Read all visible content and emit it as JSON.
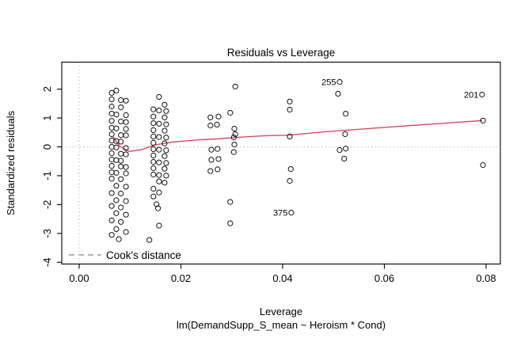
{
  "title": "Residuals vs Leverage",
  "axes": {
    "xlabel": "Leverage",
    "model_label": "lm(DemandSupp_S_mean ~ Heroism * Cond)",
    "ylabel": "Standardized residuals",
    "x_tick_values": [
      0.0,
      0.02,
      0.04,
      0.06,
      0.08
    ],
    "x_tick_labels": [
      "0.00",
      "0.02",
      "0.04",
      "0.06",
      "0.08"
    ],
    "y_tick_values": [
      -4,
      -3,
      -2,
      -1,
      0,
      1,
      2
    ],
    "y_tick_labels": [
      "-4",
      "-3",
      "-2",
      "-1",
      "0",
      "1",
      "2"
    ],
    "xlim": [
      -0.0034,
      0.0828
    ],
    "ylim": [
      -4.05,
      2.95
    ]
  },
  "legend": {
    "label": "Cook's distance",
    "color": "#9b9b9b"
  },
  "colors": {
    "smooth_line": "#dc3b55",
    "point_stroke": "#111111",
    "ref_dotted": "#bdbdbd",
    "axis": "#000000"
  },
  "chart_data": {
    "type": "scatter",
    "title": "Residuals vs Leverage",
    "xlabel": "Leverage",
    "ylabel": "Standardized residuals",
    "x_is": "leverage",
    "y_is": "standardized residuals",
    "grid": "off",
    "ref_lines": {
      "h_dotted_y": 0,
      "v_dotted_x": 0
    },
    "points": [
      [
        0.0073,
        1.95
      ],
      [
        0.0064,
        1.87
      ],
      [
        0.0064,
        1.65
      ],
      [
        0.0082,
        1.62
      ],
      [
        0.0092,
        1.6
      ],
      [
        0.0064,
        1.4
      ],
      [
        0.0082,
        1.37
      ],
      [
        0.0064,
        1.15
      ],
      [
        0.0073,
        1.12
      ],
      [
        0.0092,
        1.1
      ],
      [
        0.0064,
        0.9
      ],
      [
        0.0082,
        0.88
      ],
      [
        0.0092,
        0.86
      ],
      [
        0.0064,
        0.66
      ],
      [
        0.0073,
        0.64
      ],
      [
        0.0092,
        0.62
      ],
      [
        0.0064,
        0.44
      ],
      [
        0.0082,
        0.41
      ],
      [
        0.0092,
        0.4
      ],
      [
        0.0064,
        0.22
      ],
      [
        0.0073,
        0.2
      ],
      [
        0.0082,
        0.18
      ],
      [
        0.0064,
        0.0
      ],
      [
        0.0073,
        -0.02
      ],
      [
        0.0092,
        -0.04
      ],
      [
        0.0064,
        -0.22
      ],
      [
        0.0082,
        -0.24
      ],
      [
        0.0092,
        -0.26
      ],
      [
        0.0064,
        -0.44
      ],
      [
        0.0073,
        -0.46
      ],
      [
        0.0082,
        -0.48
      ],
      [
        0.0064,
        -0.66
      ],
      [
        0.0082,
        -0.68
      ],
      [
        0.0092,
        -0.7
      ],
      [
        0.0064,
        -0.88
      ],
      [
        0.0073,
        -0.9
      ],
      [
        0.0092,
        -0.92
      ],
      [
        0.0064,
        -1.1
      ],
      [
        0.0082,
        -1.12
      ],
      [
        0.0073,
        -1.35
      ],
      [
        0.0092,
        -1.38
      ],
      [
        0.0064,
        -1.6
      ],
      [
        0.0082,
        -1.62
      ],
      [
        0.0073,
        -1.85
      ],
      [
        0.0092,
        -1.88
      ],
      [
        0.0064,
        -2.05
      ],
      [
        0.0082,
        -2.1
      ],
      [
        0.0073,
        -2.3
      ],
      [
        0.0092,
        -2.35
      ],
      [
        0.0064,
        -2.55
      ],
      [
        0.0082,
        -2.6
      ],
      [
        0.0073,
        -2.85
      ],
      [
        0.0092,
        -2.95
      ],
      [
        0.0064,
        -3.05
      ],
      [
        0.0078,
        -3.2
      ],
      [
        0.0157,
        1.73
      ],
      [
        0.0168,
        1.46
      ],
      [
        0.0146,
        1.3
      ],
      [
        0.0157,
        1.26
      ],
      [
        0.0171,
        1.24
      ],
      [
        0.0146,
        1.05
      ],
      [
        0.0168,
        1.02
      ],
      [
        0.0146,
        0.82
      ],
      [
        0.0157,
        0.8
      ],
      [
        0.0171,
        0.78
      ],
      [
        0.0146,
        0.58
      ],
      [
        0.0168,
        0.56
      ],
      [
        0.0146,
        0.36
      ],
      [
        0.0157,
        0.34
      ],
      [
        0.0171,
        0.32
      ],
      [
        0.0146,
        0.14
      ],
      [
        0.0168,
        0.12
      ],
      [
        0.0146,
        -0.08
      ],
      [
        0.0157,
        -0.1
      ],
      [
        0.0171,
        -0.12
      ],
      [
        0.0146,
        -0.3
      ],
      [
        0.0168,
        -0.32
      ],
      [
        0.0146,
        -0.52
      ],
      [
        0.0157,
        -0.54
      ],
      [
        0.0171,
        -0.56
      ],
      [
        0.0146,
        -0.74
      ],
      [
        0.0168,
        -0.76
      ],
      [
        0.0146,
        -0.96
      ],
      [
        0.0157,
        -0.98
      ],
      [
        0.0171,
        -1.0
      ],
      [
        0.0157,
        -1.2
      ],
      [
        0.0168,
        -1.24
      ],
      [
        0.0146,
        -1.45
      ],
      [
        0.0157,
        -1.58
      ],
      [
        0.0146,
        -1.72
      ],
      [
        0.0152,
        -1.99
      ],
      [
        0.0155,
        -2.13
      ],
      [
        0.0157,
        -2.73
      ],
      [
        0.0138,
        -3.23
      ],
      [
        0.0307,
        2.09
      ],
      [
        0.0297,
        1.18
      ],
      [
        0.0258,
        1.02
      ],
      [
        0.0274,
        1.05
      ],
      [
        0.0258,
        0.74
      ],
      [
        0.0271,
        0.77
      ],
      [
        0.0305,
        0.63
      ],
      [
        0.0307,
        0.44
      ],
      [
        0.0304,
        0.33
      ],
      [
        0.0305,
        0.08
      ],
      [
        0.026,
        -0.1
      ],
      [
        0.0272,
        -0.07
      ],
      [
        0.0304,
        -0.18
      ],
      [
        0.026,
        -0.45
      ],
      [
        0.0274,
        -0.42
      ],
      [
        0.0258,
        -0.84
      ],
      [
        0.0272,
        -0.78
      ],
      [
        0.0297,
        -1.91
      ],
      [
        0.0297,
        -2.65
      ],
      [
        0.0414,
        1.57
      ],
      [
        0.0414,
        1.29
      ],
      [
        0.0414,
        0.36
      ],
      [
        0.0416,
        -0.77
      ],
      [
        0.0414,
        -1.18
      ],
      [
        0.0417,
        -2.28
      ],
      [
        0.0512,
        2.25
      ],
      [
        0.0509,
        1.84
      ],
      [
        0.0524,
        1.15
      ],
      [
        0.0523,
        0.44
      ],
      [
        0.0512,
        -0.11
      ],
      [
        0.0524,
        -0.06
      ],
      [
        0.0521,
        -0.41
      ],
      [
        0.0792,
        1.81
      ],
      [
        0.0794,
        0.91
      ],
      [
        0.0794,
        -0.63
      ]
    ],
    "labeled_points": [
      {
        "label": "255",
        "x": 0.0512,
        "y": 2.25
      },
      {
        "label": "201",
        "x": 0.0792,
        "y": 1.81
      },
      {
        "label": "375",
        "x": 0.0417,
        "y": -2.28
      }
    ],
    "smooth_line": [
      [
        0.0067,
        0.35
      ],
      [
        0.008,
        0.02
      ],
      [
        0.0098,
        -0.16
      ],
      [
        0.0122,
        -0.1
      ],
      [
        0.015,
        0.07
      ],
      [
        0.0185,
        0.17
      ],
      [
        0.0225,
        0.23
      ],
      [
        0.0265,
        0.27
      ],
      [
        0.031,
        0.33
      ],
      [
        0.036,
        0.38
      ],
      [
        0.0415,
        0.41
      ],
      [
        0.0475,
        0.51
      ],
      [
        0.0535,
        0.59
      ],
      [
        0.062,
        0.7
      ],
      [
        0.071,
        0.81
      ],
      [
        0.0792,
        0.91
      ]
    ],
    "legend": {
      "label": "Cook's distance",
      "position": "bottom-left",
      "style": "gray dashed"
    }
  }
}
